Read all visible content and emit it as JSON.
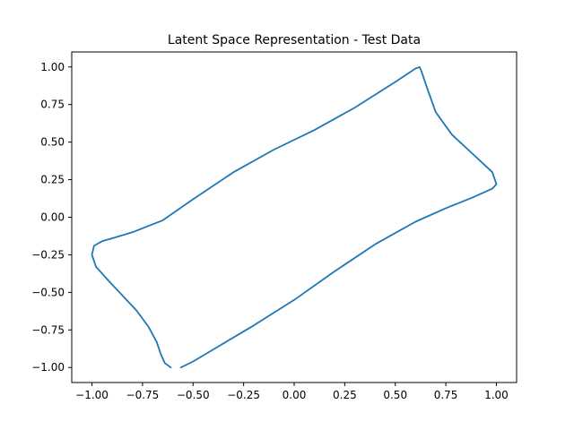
{
  "chart_data": {
    "type": "line",
    "title": "Latent Space Representation - Test Data",
    "xlabel": "",
    "ylabel": "",
    "xlim": [
      -1.1,
      1.1
    ],
    "ylim": [
      -1.1,
      1.1
    ],
    "x_ticks": [
      -1.0,
      -0.75,
      -0.5,
      -0.25,
      0.0,
      0.25,
      0.5,
      0.75,
      1.0
    ],
    "x_tick_labels": [
      "−1.00",
      "−0.75",
      "−0.50",
      "−0.25",
      "0.00",
      "0.25",
      "0.50",
      "0.75",
      "1.00"
    ],
    "y_ticks": [
      -1.0,
      -0.75,
      -0.5,
      -0.25,
      0.0,
      0.25,
      0.5,
      0.75,
      1.0
    ],
    "y_tick_labels": [
      "−1.00",
      "−0.75",
      "−0.50",
      "−0.25",
      "0.00",
      "0.25",
      "0.50",
      "0.75",
      "1.00"
    ],
    "grid": false,
    "legend": false,
    "series": [
      {
        "color": "#1f77b4",
        "x": [
          -0.56,
          -0.5,
          -0.4,
          -0.2,
          0.0,
          0.2,
          0.4,
          0.6,
          0.75,
          0.88,
          0.98,
          1.0,
          0.98,
          0.9,
          0.78,
          0.7,
          0.66,
          0.63,
          0.62,
          0.6,
          0.5,
          0.3,
          0.1,
          -0.1,
          -0.3,
          -0.5,
          -0.65,
          -0.8,
          -0.9,
          -0.95,
          -0.99,
          -1.0,
          -0.98,
          -0.92,
          -0.85,
          -0.78,
          -0.72,
          -0.68,
          -0.66,
          -0.64,
          -0.61
        ],
        "y": [
          -1.0,
          -0.96,
          -0.88,
          -0.72,
          -0.55,
          -0.36,
          -0.18,
          -0.03,
          0.06,
          0.13,
          0.19,
          0.22,
          0.3,
          0.4,
          0.55,
          0.7,
          0.85,
          0.97,
          1.0,
          0.99,
          0.9,
          0.73,
          0.58,
          0.45,
          0.3,
          0.12,
          -0.02,
          -0.1,
          -0.14,
          -0.16,
          -0.19,
          -0.25,
          -0.33,
          -0.42,
          -0.52,
          -0.62,
          -0.73,
          -0.83,
          -0.91,
          -0.97,
          -1.0
        ]
      }
    ]
  }
}
